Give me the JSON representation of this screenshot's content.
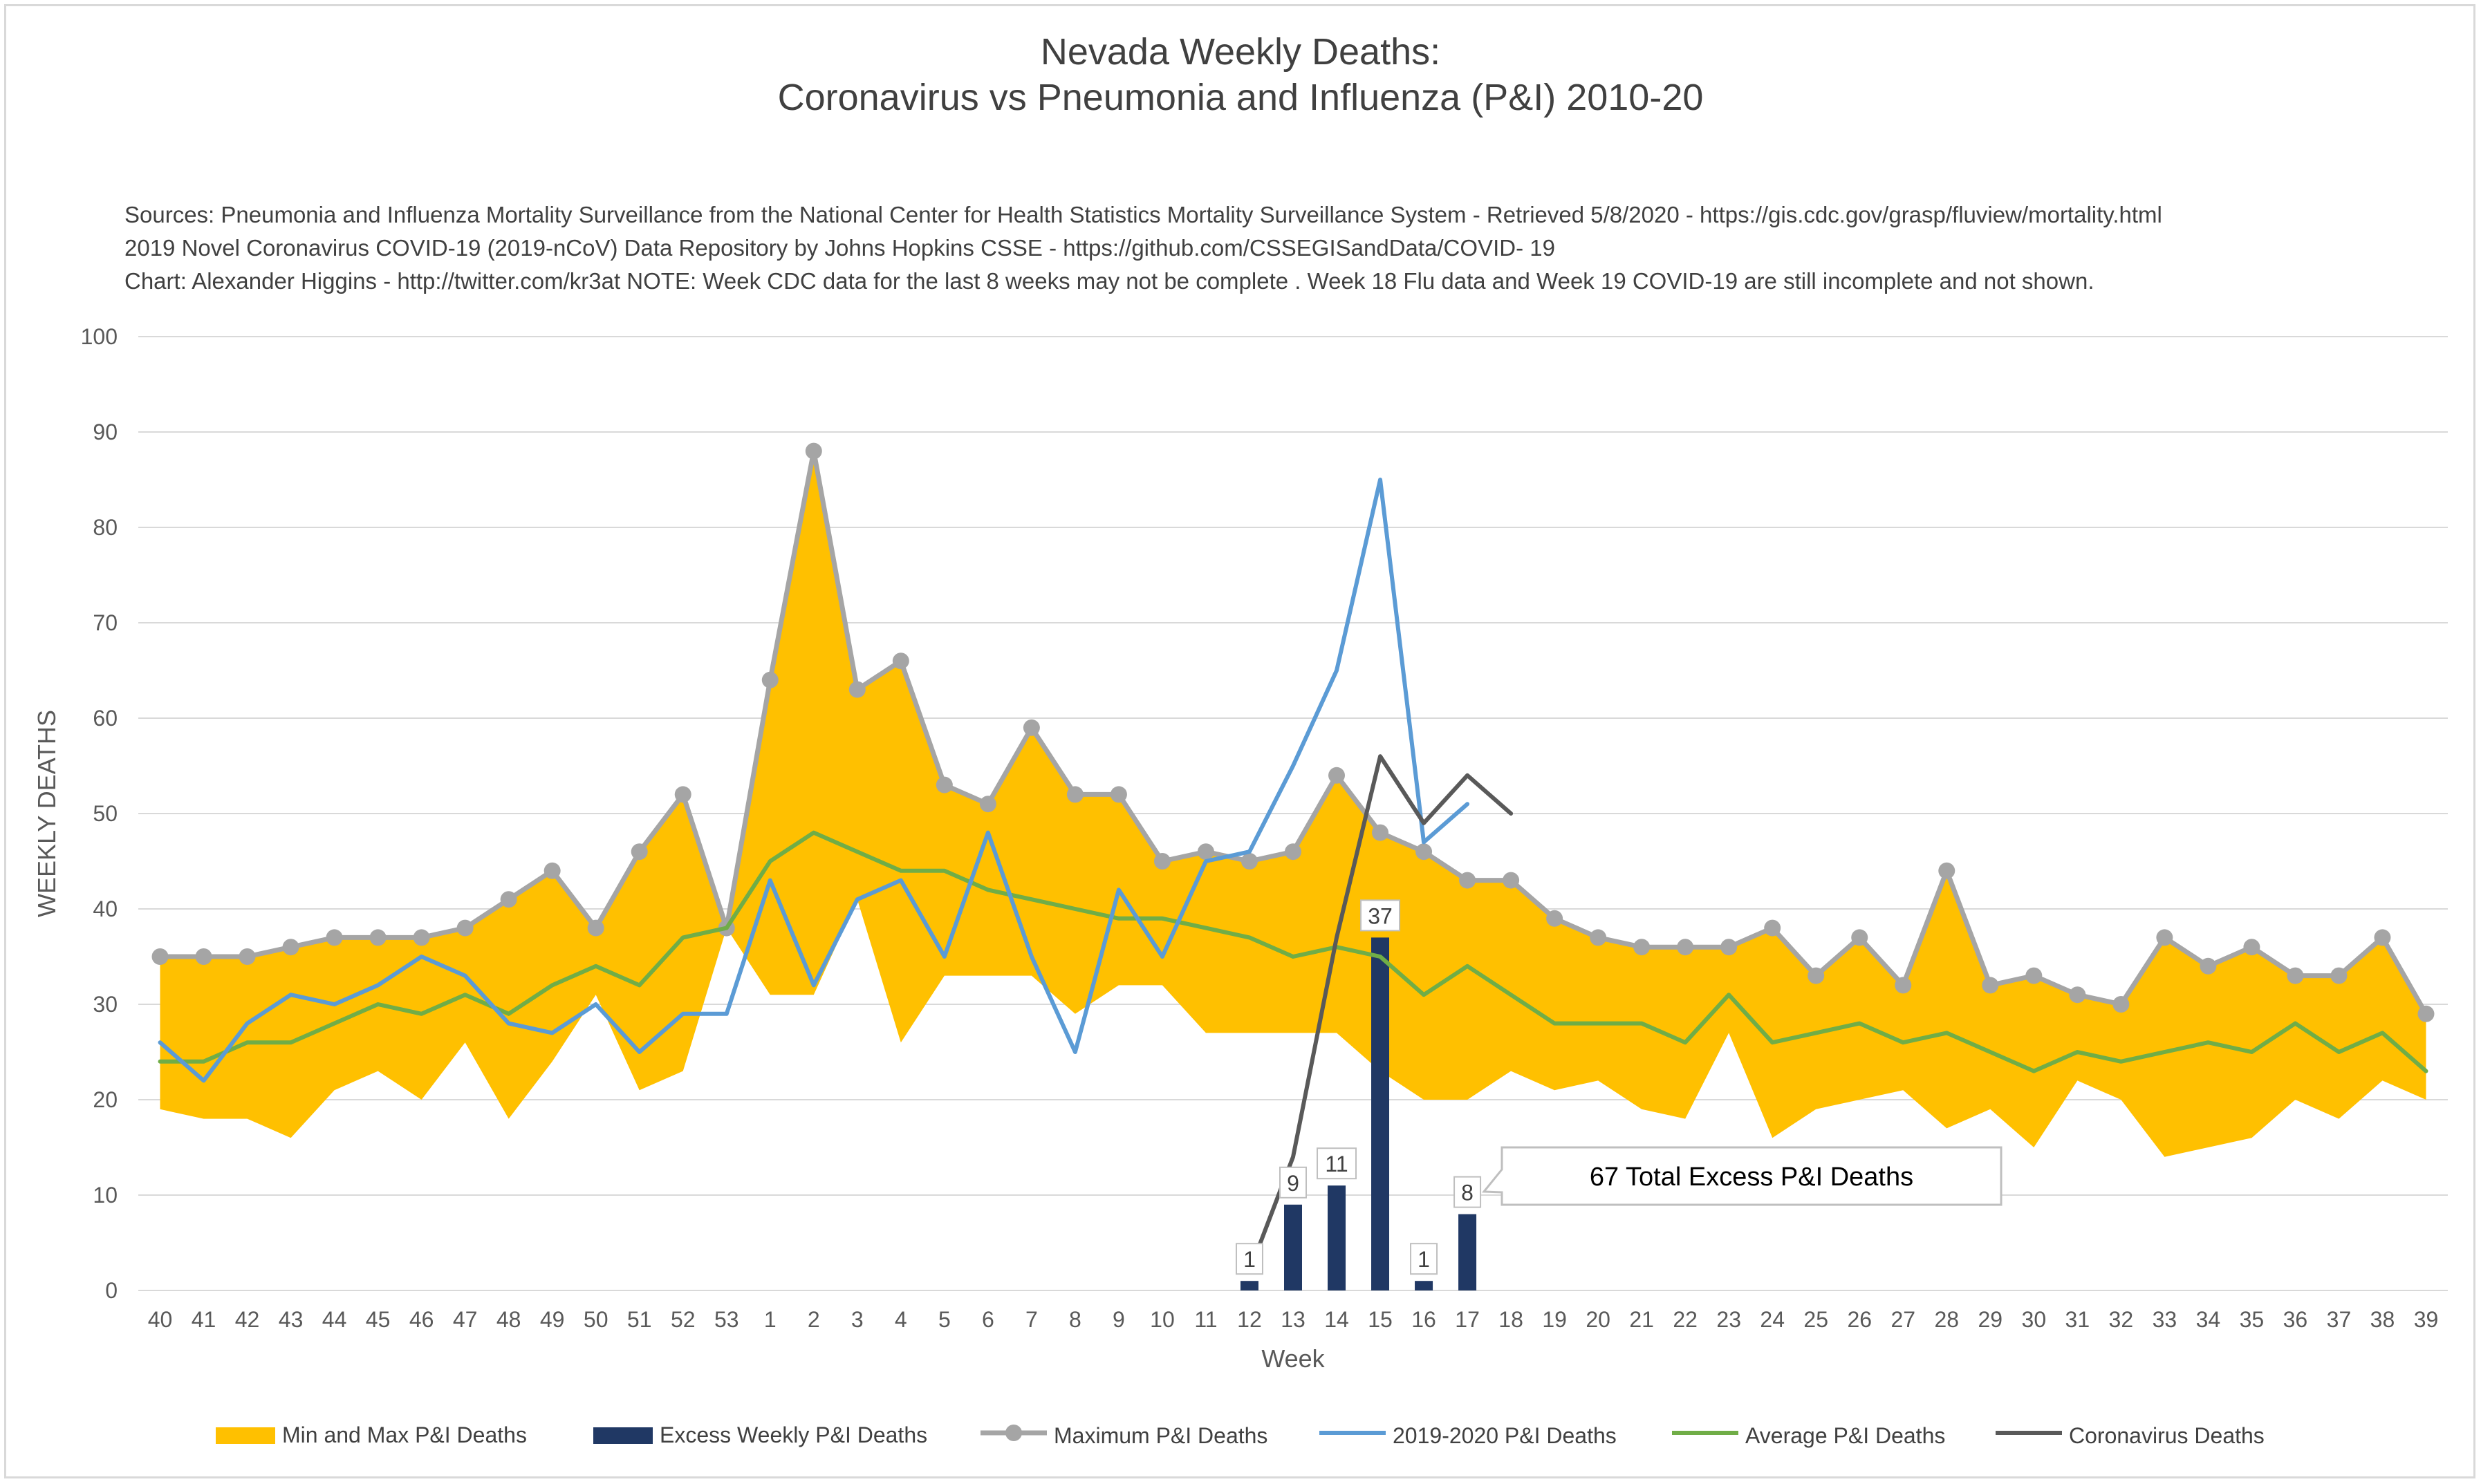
{
  "title_line1": "Nevada Weekly Deaths:",
  "title_line2": "Coronavirus vs Pneumonia and Influenza (P&I) 2010-20",
  "sources": [
    "Sources: Pneumonia and Influenza Mortality Surveillance from the National Center for Health Statistics Mortality Surveillance System - Retrieved 5/8/2020 - https://gis.cdc.gov/grasp/fluview/mortality.html",
    "2019 Novel Coronavirus COVID-19 (2019-nCoV) Data Repository by Johns Hopkins CSSE - https://github.com/CSSEGISandData/COVID- 19",
    "Chart: Alexander Higgins - http://twitter.com/kr3at   NOTE: Week CDC data for the last 8 weeks may not be complete . Week 18 Flu data and Week 19 COVID-19 are still incomplete and not shown."
  ],
  "annotation": "67 Total Excess P&I Deaths",
  "colors": {
    "minmax": "#ffc000",
    "excess": "#203864",
    "maximum": "#a5a5a5",
    "current": "#5b9bd5",
    "average": "#70ad47",
    "corona": "#595959",
    "grid": "#d9d9d9",
    "text": "#595959"
  },
  "chart_data": {
    "type": "line",
    "xlabel": "Week",
    "ylabel": "WEEKLY DEATHS",
    "ylim": [
      0,
      100
    ],
    "yticks": [
      0,
      10,
      20,
      30,
      40,
      50,
      60,
      70,
      80,
      90,
      100
    ],
    "grid": true,
    "legend_position": "bottom",
    "categories": [
      "40",
      "41",
      "42",
      "43",
      "44",
      "45",
      "46",
      "47",
      "48",
      "49",
      "50",
      "51",
      "52",
      "53",
      "1",
      "2",
      "3",
      "4",
      "5",
      "6",
      "7",
      "8",
      "9",
      "10",
      "11",
      "12",
      "13",
      "14",
      "15",
      "16",
      "17",
      "18",
      "19",
      "20",
      "21",
      "22",
      "23",
      "24",
      "25",
      "26",
      "27",
      "28",
      "29",
      "30",
      "31",
      "32",
      "33",
      "34",
      "35",
      "36",
      "37",
      "38",
      "39"
    ],
    "series": [
      {
        "name": "Min and Max P&I Deaths",
        "type": "area",
        "min": [
          19,
          18,
          18,
          16,
          21,
          23,
          20,
          26,
          18,
          24,
          31,
          21,
          23,
          38,
          31,
          31,
          41,
          26,
          33,
          33,
          33,
          29,
          32,
          32,
          27,
          27,
          27,
          27,
          23,
          20,
          20,
          23,
          21,
          22,
          19,
          18,
          27,
          16,
          19,
          20,
          21,
          17,
          19,
          15,
          22,
          20,
          14,
          15,
          16,
          20,
          18,
          22,
          20
        ],
        "max": [
          35,
          35,
          35,
          36,
          37,
          37,
          37,
          38,
          41,
          44,
          38,
          46,
          52,
          38,
          64,
          88,
          63,
          66,
          53,
          51,
          59,
          52,
          52,
          45,
          46,
          45,
          46,
          54,
          48,
          46,
          43,
          43,
          39,
          37,
          36,
          36,
          36,
          38,
          33,
          37,
          32,
          44,
          32,
          33,
          31,
          30,
          37,
          34,
          36,
          33,
          33,
          37,
          29
        ]
      },
      {
        "name": "Excess Weekly P&I Deaths",
        "type": "bar",
        "values": [
          null,
          null,
          null,
          null,
          null,
          null,
          null,
          null,
          null,
          null,
          null,
          null,
          null,
          null,
          null,
          null,
          null,
          null,
          null,
          null,
          null,
          null,
          null,
          null,
          null,
          1,
          9,
          11,
          37,
          1,
          8,
          null,
          null,
          null,
          null,
          null,
          null,
          null,
          null,
          null,
          null,
          null,
          null,
          null,
          null,
          null,
          null,
          null,
          null,
          null,
          null,
          null,
          null
        ]
      },
      {
        "name": "Maximum P&I Deaths",
        "type": "line",
        "markers": true,
        "values": [
          35,
          35,
          35,
          36,
          37,
          37,
          37,
          38,
          41,
          44,
          38,
          46,
          52,
          38,
          64,
          88,
          63,
          66,
          53,
          51,
          59,
          52,
          52,
          45,
          46,
          45,
          46,
          54,
          48,
          46,
          43,
          43,
          39,
          37,
          36,
          36,
          36,
          38,
          33,
          37,
          32,
          44,
          32,
          33,
          31,
          30,
          37,
          34,
          36,
          33,
          33,
          37,
          29
        ]
      },
      {
        "name": "2019-2020 P&I Deaths",
        "type": "line",
        "values": [
          26,
          22,
          28,
          31,
          30,
          32,
          35,
          33,
          28,
          27,
          30,
          25,
          29,
          29,
          43,
          32,
          41,
          43,
          35,
          48,
          35,
          25,
          42,
          35,
          45,
          46,
          55,
          65,
          85,
          47,
          51,
          null,
          null,
          null,
          null,
          null,
          null,
          null,
          null,
          null,
          null,
          null,
          null,
          null,
          null,
          null,
          null,
          null,
          null,
          null,
          null,
          null,
          null
        ]
      },
      {
        "name": "Average P&I Deaths",
        "type": "line",
        "values": [
          24,
          24,
          26,
          26,
          28,
          30,
          29,
          31,
          29,
          32,
          34,
          32,
          37,
          38,
          45,
          48,
          46,
          44,
          44,
          42,
          41,
          40,
          39,
          39,
          38,
          37,
          35,
          36,
          35,
          31,
          34,
          31,
          28,
          28,
          28,
          26,
          31,
          26,
          27,
          28,
          26,
          27,
          25,
          23,
          25,
          24,
          25,
          26,
          25,
          28,
          25,
          27,
          23
        ]
      },
      {
        "name": "Coronavirus Deaths",
        "type": "line",
        "values": [
          null,
          null,
          null,
          null,
          null,
          null,
          null,
          null,
          null,
          null,
          null,
          null,
          null,
          null,
          null,
          null,
          null,
          null,
          null,
          null,
          null,
          null,
          null,
          null,
          null,
          2,
          14,
          37,
          56,
          49,
          54,
          50,
          null,
          null,
          null,
          null,
          null,
          null,
          null,
          null,
          null,
          null,
          null,
          null,
          null,
          null,
          null,
          null,
          null,
          null,
          null,
          null,
          null
        ]
      }
    ]
  }
}
